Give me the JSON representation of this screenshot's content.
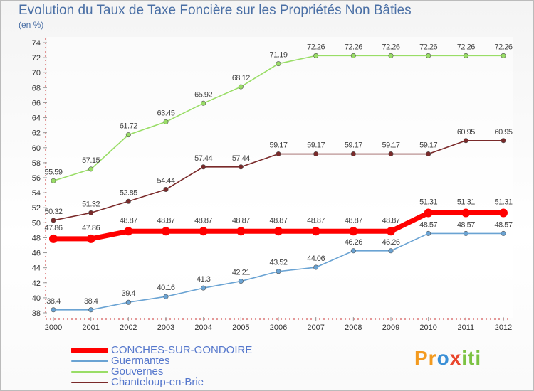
{
  "header": {
    "title": "Evolution du Taux de Taxe Foncière sur les Propriétés Non Bâties",
    "unit": "(en %)"
  },
  "brand": {
    "logo_text": "Proxiti"
  },
  "chart_data": {
    "type": "line",
    "title": "Evolution du Taux de Taxe Foncière sur les Propriétés Non Bâties",
    "ylabel": "(en %)",
    "xlabel": "",
    "x": [
      "2000",
      "2001",
      "2002",
      "2003",
      "2004",
      "2005",
      "2006",
      "2007",
      "2008",
      "2009",
      "2010",
      "2011",
      "2012"
    ],
    "ylim": [
      38,
      74
    ],
    "yticks": [
      38,
      40,
      42,
      44,
      46,
      48,
      50,
      52,
      54,
      56,
      58,
      60,
      62,
      64,
      66,
      68,
      70,
      72,
      74
    ],
    "grid": false,
    "legend_position": "bottom-left",
    "series": [
      {
        "name": "CONCHES-SUR-GONDOIRE",
        "color": "#ff0000",
        "emphasis": true,
        "values": [
          47.86,
          47.86,
          48.87,
          48.87,
          48.87,
          48.87,
          48.87,
          48.87,
          48.87,
          48.87,
          51.31,
          51.31,
          51.31
        ],
        "labels": [
          "47.86",
          "47.86",
          "48.87",
          "48.87",
          "48.87",
          "48.87",
          "48.87",
          "48.87",
          "48.87",
          "48.87",
          "51.31",
          "51.31",
          "51.31"
        ]
      },
      {
        "name": "Guermantes",
        "color": "#6aa3d3",
        "values": [
          38.4,
          38.4,
          39.4,
          40.16,
          41.3,
          42.21,
          43.52,
          44.06,
          46.26,
          46.26,
          48.57,
          48.57,
          48.57
        ],
        "labels": [
          "38.4",
          "38.4",
          "39.4",
          "40.16",
          "41.3",
          "42.21",
          "43.52",
          "44.06",
          "46.26",
          "46.26",
          "48.57",
          "48.57",
          "48.57"
        ]
      },
      {
        "name": "Gouvernes",
        "color": "#99dd66",
        "values": [
          55.59,
          57.15,
          61.72,
          63.45,
          65.92,
          68.12,
          71.19,
          72.26,
          72.26,
          72.26,
          72.26,
          72.26,
          72.26
        ],
        "labels": [
          "55.59",
          "57.15",
          "61.72",
          "63.45",
          "65.92",
          "68.12",
          "71.19",
          "72.26",
          "72.26",
          "72.26",
          "72.26",
          "72.26",
          "72.26"
        ]
      },
      {
        "name": "Chanteloup-en-Brie",
        "color": "#7a2a2a",
        "values": [
          50.32,
          51.32,
          52.85,
          54.44,
          57.44,
          57.44,
          59.17,
          59.17,
          59.17,
          59.17,
          59.17,
          60.95,
          60.95
        ],
        "labels": [
          "50.32",
          "51.32",
          "52.85",
          "54.44",
          "57.44",
          "57.44",
          "59.17",
          "59.17",
          "59.17",
          "59.17",
          "59.17",
          "60.95",
          "60.95"
        ]
      }
    ]
  }
}
